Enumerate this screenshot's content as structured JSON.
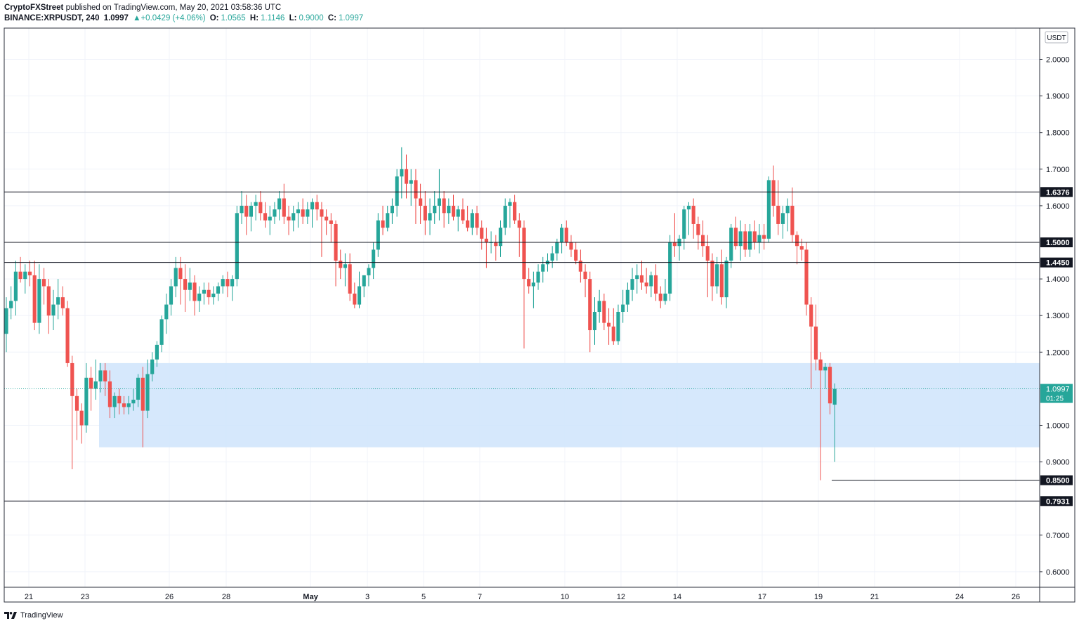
{
  "header": {
    "publisher": "CryptoFXStreet",
    "published_text": "published on TradingView.com, May 20, 2021 03:58:36 UTC",
    "symbol": "BINANCE:XRPUSDT, 240",
    "last": "1.0997",
    "change": "▲+0.0429 (+4.06%)",
    "o_label": "O:",
    "o": "1.0565",
    "h_label": "H:",
    "h": "1.1146",
    "l_label": "L:",
    "l": "0.9000",
    "c_label": "C:",
    "c": "1.0997"
  },
  "footer": {
    "brand": "TradingView"
  },
  "colors": {
    "up": "#26a69a",
    "down": "#ef5350",
    "zone": "#cfe4fb",
    "axis_tag": "#131722",
    "price_tag": "#26a69a"
  },
  "chart_data": {
    "type": "candlestick",
    "currency_label": "USDT",
    "x_ticks": [
      "21",
      "23",
      "26",
      "28",
      "May",
      "3",
      "5",
      "7",
      "10",
      "12",
      "14",
      "17",
      "19",
      "21",
      "24",
      "26"
    ],
    "y_ticks": [
      "2.0000",
      "1.9000",
      "1.8000",
      "1.7000",
      "1.6000",
      "1.4000",
      "1.3000",
      "1.2000",
      "1.0000",
      "0.9000",
      "0.7000",
      "0.6000"
    ],
    "ylim": [
      0.545,
      2.09
    ],
    "levels": [
      {
        "label": "1.6376",
        "price": 1.6376
      },
      {
        "label": "1.5000",
        "price": 1.5
      },
      {
        "label": "1.4450",
        "price": 1.445
      },
      {
        "label": "0.8500",
        "price": 0.85
      },
      {
        "label": "0.7931",
        "price": 0.7931
      }
    ],
    "current_price": {
      "label": "1.0997",
      "price": 1.0997,
      "countdown": "01:25"
    },
    "support_zone": {
      "top": 1.17,
      "bottom": 0.94
    },
    "candles": [
      [
        1.25,
        1.35,
        1.2,
        1.32
      ],
      [
        1.32,
        1.38,
        1.29,
        1.34
      ],
      [
        1.34,
        1.45,
        1.3,
        1.42
      ],
      [
        1.42,
        1.46,
        1.39,
        1.4
      ],
      [
        1.4,
        1.44,
        1.36,
        1.42
      ],
      [
        1.42,
        1.45,
        1.38,
        1.41
      ],
      [
        1.41,
        1.45,
        1.26,
        1.28
      ],
      [
        1.28,
        1.44,
        1.25,
        1.4
      ],
      [
        1.4,
        1.43,
        1.33,
        1.38
      ],
      [
        1.38,
        1.4,
        1.25,
        1.3
      ],
      [
        1.3,
        1.37,
        1.26,
        1.33
      ],
      [
        1.33,
        1.4,
        1.29,
        1.35
      ],
      [
        1.35,
        1.38,
        1.3,
        1.32
      ],
      [
        1.32,
        1.34,
        1.16,
        1.17
      ],
      [
        1.17,
        1.19,
        0.88,
        1.08
      ],
      [
        1.08,
        1.1,
        0.96,
        1.04
      ],
      [
        1.04,
        1.06,
        0.95,
        1.0
      ],
      [
        1.0,
        1.17,
        0.98,
        1.13
      ],
      [
        1.13,
        1.16,
        1.04,
        1.1
      ],
      [
        1.1,
        1.18,
        1.07,
        1.12
      ],
      [
        1.12,
        1.17,
        1.09,
        1.15
      ],
      [
        1.15,
        1.17,
        1.08,
        1.12
      ],
      [
        1.12,
        1.15,
        1.02,
        1.05
      ],
      [
        1.05,
        1.09,
        1.02,
        1.08
      ],
      [
        1.08,
        1.1,
        1.03,
        1.06
      ],
      [
        1.06,
        1.08,
        1.03,
        1.05
      ],
      [
        1.05,
        1.08,
        1.03,
        1.06
      ],
      [
        1.06,
        1.1,
        1.04,
        1.07
      ],
      [
        1.07,
        1.14,
        1.05,
        1.13
      ],
      [
        1.13,
        1.16,
        0.94,
        1.04
      ],
      [
        1.04,
        1.18,
        1.02,
        1.14
      ],
      [
        1.14,
        1.2,
        1.12,
        1.18
      ],
      [
        1.18,
        1.23,
        1.16,
        1.22
      ],
      [
        1.22,
        1.3,
        1.2,
        1.29
      ],
      [
        1.29,
        1.36,
        1.25,
        1.33
      ],
      [
        1.33,
        1.4,
        1.3,
        1.38
      ],
      [
        1.38,
        1.46,
        1.35,
        1.43
      ],
      [
        1.43,
        1.46,
        1.33,
        1.4
      ],
      [
        1.4,
        1.44,
        1.31,
        1.37
      ],
      [
        1.37,
        1.43,
        1.34,
        1.39
      ],
      [
        1.39,
        1.41,
        1.3,
        1.34
      ],
      [
        1.34,
        1.38,
        1.31,
        1.36
      ],
      [
        1.36,
        1.39,
        1.33,
        1.37
      ],
      [
        1.37,
        1.39,
        1.33,
        1.35
      ],
      [
        1.35,
        1.38,
        1.33,
        1.36
      ],
      [
        1.36,
        1.39,
        1.34,
        1.38
      ],
      [
        1.38,
        1.41,
        1.36,
        1.4
      ],
      [
        1.4,
        1.42,
        1.35,
        1.38
      ],
      [
        1.38,
        1.41,
        1.34,
        1.4
      ],
      [
        1.4,
        1.6,
        1.38,
        1.58
      ],
      [
        1.58,
        1.64,
        1.55,
        1.6
      ],
      [
        1.6,
        1.63,
        1.52,
        1.57
      ],
      [
        1.57,
        1.61,
        1.53,
        1.6
      ],
      [
        1.6,
        1.63,
        1.56,
        1.61
      ],
      [
        1.61,
        1.64,
        1.56,
        1.58
      ],
      [
        1.58,
        1.61,
        1.54,
        1.56
      ],
      [
        1.56,
        1.6,
        1.52,
        1.57
      ],
      [
        1.57,
        1.61,
        1.55,
        1.59
      ],
      [
        1.59,
        1.64,
        1.56,
        1.62
      ],
      [
        1.62,
        1.66,
        1.55,
        1.57
      ],
      [
        1.57,
        1.6,
        1.52,
        1.56
      ],
      [
        1.56,
        1.6,
        1.53,
        1.58
      ],
      [
        1.58,
        1.61,
        1.54,
        1.59
      ],
      [
        1.59,
        1.62,
        1.55,
        1.57
      ],
      [
        1.57,
        1.61,
        1.55,
        1.59
      ],
      [
        1.59,
        1.62,
        1.54,
        1.61
      ],
      [
        1.61,
        1.63,
        1.56,
        1.59
      ],
      [
        1.59,
        1.61,
        1.46,
        1.57
      ],
      [
        1.57,
        1.59,
        1.52,
        1.56
      ],
      [
        1.56,
        1.58,
        1.5,
        1.55
      ],
      [
        1.55,
        1.56,
        1.38,
        1.45
      ],
      [
        1.45,
        1.48,
        1.4,
        1.43
      ],
      [
        1.43,
        1.47,
        1.38,
        1.44
      ],
      [
        1.44,
        1.47,
        1.34,
        1.36
      ],
      [
        1.36,
        1.39,
        1.32,
        1.33
      ],
      [
        1.33,
        1.42,
        1.32,
        1.38
      ],
      [
        1.38,
        1.41,
        1.35,
        1.41
      ],
      [
        1.41,
        1.44,
        1.38,
        1.43
      ],
      [
        1.43,
        1.5,
        1.4,
        1.48
      ],
      [
        1.48,
        1.58,
        1.46,
        1.56
      ],
      [
        1.56,
        1.6,
        1.52,
        1.54
      ],
      [
        1.54,
        1.6,
        1.53,
        1.58
      ],
      [
        1.58,
        1.62,
        1.55,
        1.6
      ],
      [
        1.6,
        1.7,
        1.57,
        1.68
      ],
      [
        1.68,
        1.76,
        1.62,
        1.7
      ],
      [
        1.7,
        1.74,
        1.62,
        1.66
      ],
      [
        1.66,
        1.7,
        1.6,
        1.67
      ],
      [
        1.67,
        1.7,
        1.55,
        1.62
      ],
      [
        1.62,
        1.66,
        1.55,
        1.6
      ],
      [
        1.6,
        1.64,
        1.52,
        1.56
      ],
      [
        1.56,
        1.62,
        1.52,
        1.58
      ],
      [
        1.58,
        1.64,
        1.55,
        1.6
      ],
      [
        1.6,
        1.7,
        1.56,
        1.62
      ],
      [
        1.62,
        1.64,
        1.54,
        1.58
      ],
      [
        1.58,
        1.62,
        1.55,
        1.6
      ],
      [
        1.6,
        1.63,
        1.56,
        1.57
      ],
      [
        1.57,
        1.6,
        1.53,
        1.59
      ],
      [
        1.59,
        1.62,
        1.55,
        1.56
      ],
      [
        1.56,
        1.6,
        1.53,
        1.54
      ],
      [
        1.54,
        1.59,
        1.52,
        1.58
      ],
      [
        1.58,
        1.6,
        1.52,
        1.54
      ],
      [
        1.54,
        1.56,
        1.48,
        1.51
      ],
      [
        1.51,
        1.54,
        1.43,
        1.5
      ],
      [
        1.5,
        1.53,
        1.47,
        1.5
      ],
      [
        1.5,
        1.52,
        1.45,
        1.49
      ],
      [
        1.49,
        1.56,
        1.46,
        1.54
      ],
      [
        1.54,
        1.62,
        1.52,
        1.6
      ],
      [
        1.6,
        1.62,
        1.54,
        1.61
      ],
      [
        1.61,
        1.63,
        1.55,
        1.56
      ],
      [
        1.56,
        1.58,
        1.46,
        1.54
      ],
      [
        1.54,
        1.56,
        1.21,
        1.4
      ],
      [
        1.4,
        1.43,
        1.36,
        1.38
      ],
      [
        1.38,
        1.42,
        1.32,
        1.39
      ],
      [
        1.39,
        1.44,
        1.37,
        1.42
      ],
      [
        1.42,
        1.46,
        1.39,
        1.44
      ],
      [
        1.44,
        1.47,
        1.42,
        1.45
      ],
      [
        1.45,
        1.49,
        1.43,
        1.47
      ],
      [
        1.47,
        1.51,
        1.45,
        1.5
      ],
      [
        1.5,
        1.55,
        1.47,
        1.54
      ],
      [
        1.54,
        1.56,
        1.49,
        1.5
      ],
      [
        1.5,
        1.52,
        1.46,
        1.48
      ],
      [
        1.48,
        1.5,
        1.44,
        1.45
      ],
      [
        1.45,
        1.48,
        1.39,
        1.42
      ],
      [
        1.42,
        1.44,
        1.35,
        1.4
      ],
      [
        1.4,
        1.42,
        1.2,
        1.26
      ],
      [
        1.26,
        1.35,
        1.22,
        1.31
      ],
      [
        1.31,
        1.37,
        1.28,
        1.34
      ],
      [
        1.34,
        1.36,
        1.26,
        1.28
      ],
      [
        1.28,
        1.32,
        1.22,
        1.27
      ],
      [
        1.27,
        1.32,
        1.22,
        1.23
      ],
      [
        1.23,
        1.33,
        1.22,
        1.31
      ],
      [
        1.31,
        1.37,
        1.28,
        1.33
      ],
      [
        1.33,
        1.39,
        1.31,
        1.37
      ],
      [
        1.37,
        1.43,
        1.34,
        1.4
      ],
      [
        1.4,
        1.44,
        1.36,
        1.41
      ],
      [
        1.41,
        1.45,
        1.37,
        1.39
      ],
      [
        1.39,
        1.43,
        1.36,
        1.38
      ],
      [
        1.38,
        1.42,
        1.35,
        1.41
      ],
      [
        1.41,
        1.44,
        1.34,
        1.36
      ],
      [
        1.36,
        1.38,
        1.32,
        1.34
      ],
      [
        1.34,
        1.4,
        1.33,
        1.36
      ],
      [
        1.36,
        1.52,
        1.34,
        1.5
      ],
      [
        1.5,
        1.58,
        1.46,
        1.49
      ],
      [
        1.49,
        1.52,
        1.45,
        1.51
      ],
      [
        1.51,
        1.6,
        1.48,
        1.59
      ],
      [
        1.59,
        1.61,
        1.52,
        1.6
      ],
      [
        1.6,
        1.62,
        1.51,
        1.55
      ],
      [
        1.55,
        1.57,
        1.48,
        1.52
      ],
      [
        1.52,
        1.56,
        1.46,
        1.49
      ],
      [
        1.49,
        1.52,
        1.35,
        1.45
      ],
      [
        1.45,
        1.47,
        1.34,
        1.38
      ],
      [
        1.38,
        1.46,
        1.36,
        1.44
      ],
      [
        1.44,
        1.48,
        1.33,
        1.35
      ],
      [
        1.35,
        1.46,
        1.32,
        1.45
      ],
      [
        1.45,
        1.55,
        1.43,
        1.54
      ],
      [
        1.54,
        1.57,
        1.48,
        1.49
      ],
      [
        1.49,
        1.56,
        1.45,
        1.53
      ],
      [
        1.53,
        1.55,
        1.46,
        1.48
      ],
      [
        1.48,
        1.55,
        1.46,
        1.53
      ],
      [
        1.53,
        1.56,
        1.48,
        1.5
      ],
      [
        1.5,
        1.55,
        1.47,
        1.52
      ],
      [
        1.52,
        1.55,
        1.48,
        1.51
      ],
      [
        1.51,
        1.68,
        1.5,
        1.67
      ],
      [
        1.67,
        1.71,
        1.57,
        1.6
      ],
      [
        1.6,
        1.67,
        1.52,
        1.55
      ],
      [
        1.55,
        1.6,
        1.51,
        1.58
      ],
      [
        1.58,
        1.62,
        1.53,
        1.6
      ],
      [
        1.6,
        1.65,
        1.5,
        1.52
      ],
      [
        1.52,
        1.53,
        1.44,
        1.49
      ],
      [
        1.49,
        1.51,
        1.45,
        1.48
      ],
      [
        1.48,
        1.5,
        1.3,
        1.33
      ],
      [
        1.33,
        1.35,
        1.1,
        1.27
      ],
      [
        1.27,
        1.33,
        1.15,
        1.18
      ],
      [
        1.18,
        1.2,
        0.85,
        1.15
      ],
      [
        1.15,
        1.17,
        1.1,
        1.16
      ],
      [
        1.16,
        1.17,
        1.03,
        1.06
      ],
      [
        1.0565,
        1.1146,
        0.9,
        1.0997
      ]
    ]
  }
}
